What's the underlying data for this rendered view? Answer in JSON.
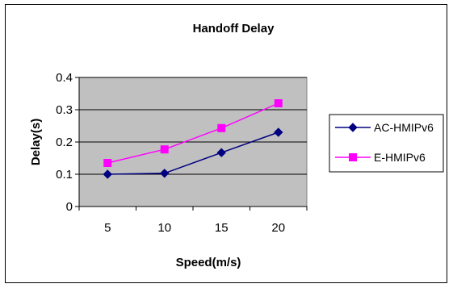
{
  "chart_data": {
    "type": "line",
    "title": "Handoff Delay",
    "xlabel": "Speed(m/s)",
    "ylabel": "Delay(s)",
    "categories": [
      "5",
      "10",
      "15",
      "20"
    ],
    "ylim": [
      0,
      0.4
    ],
    "yticks": [
      "0",
      "0.1",
      "0.2",
      "0.3",
      "0.4"
    ],
    "grid": true,
    "plot_background": "#c0c0c0",
    "legend_position": "right",
    "series": [
      {
        "name": "AC-HMIPv6",
        "values": [
          0.1,
          0.103,
          0.167,
          0.23
        ],
        "color": "#000080",
        "marker": "diamond"
      },
      {
        "name": "E-HMIPv6",
        "values": [
          0.135,
          0.177,
          0.243,
          0.32
        ],
        "color": "#ff00ff",
        "marker": "square"
      }
    ]
  }
}
